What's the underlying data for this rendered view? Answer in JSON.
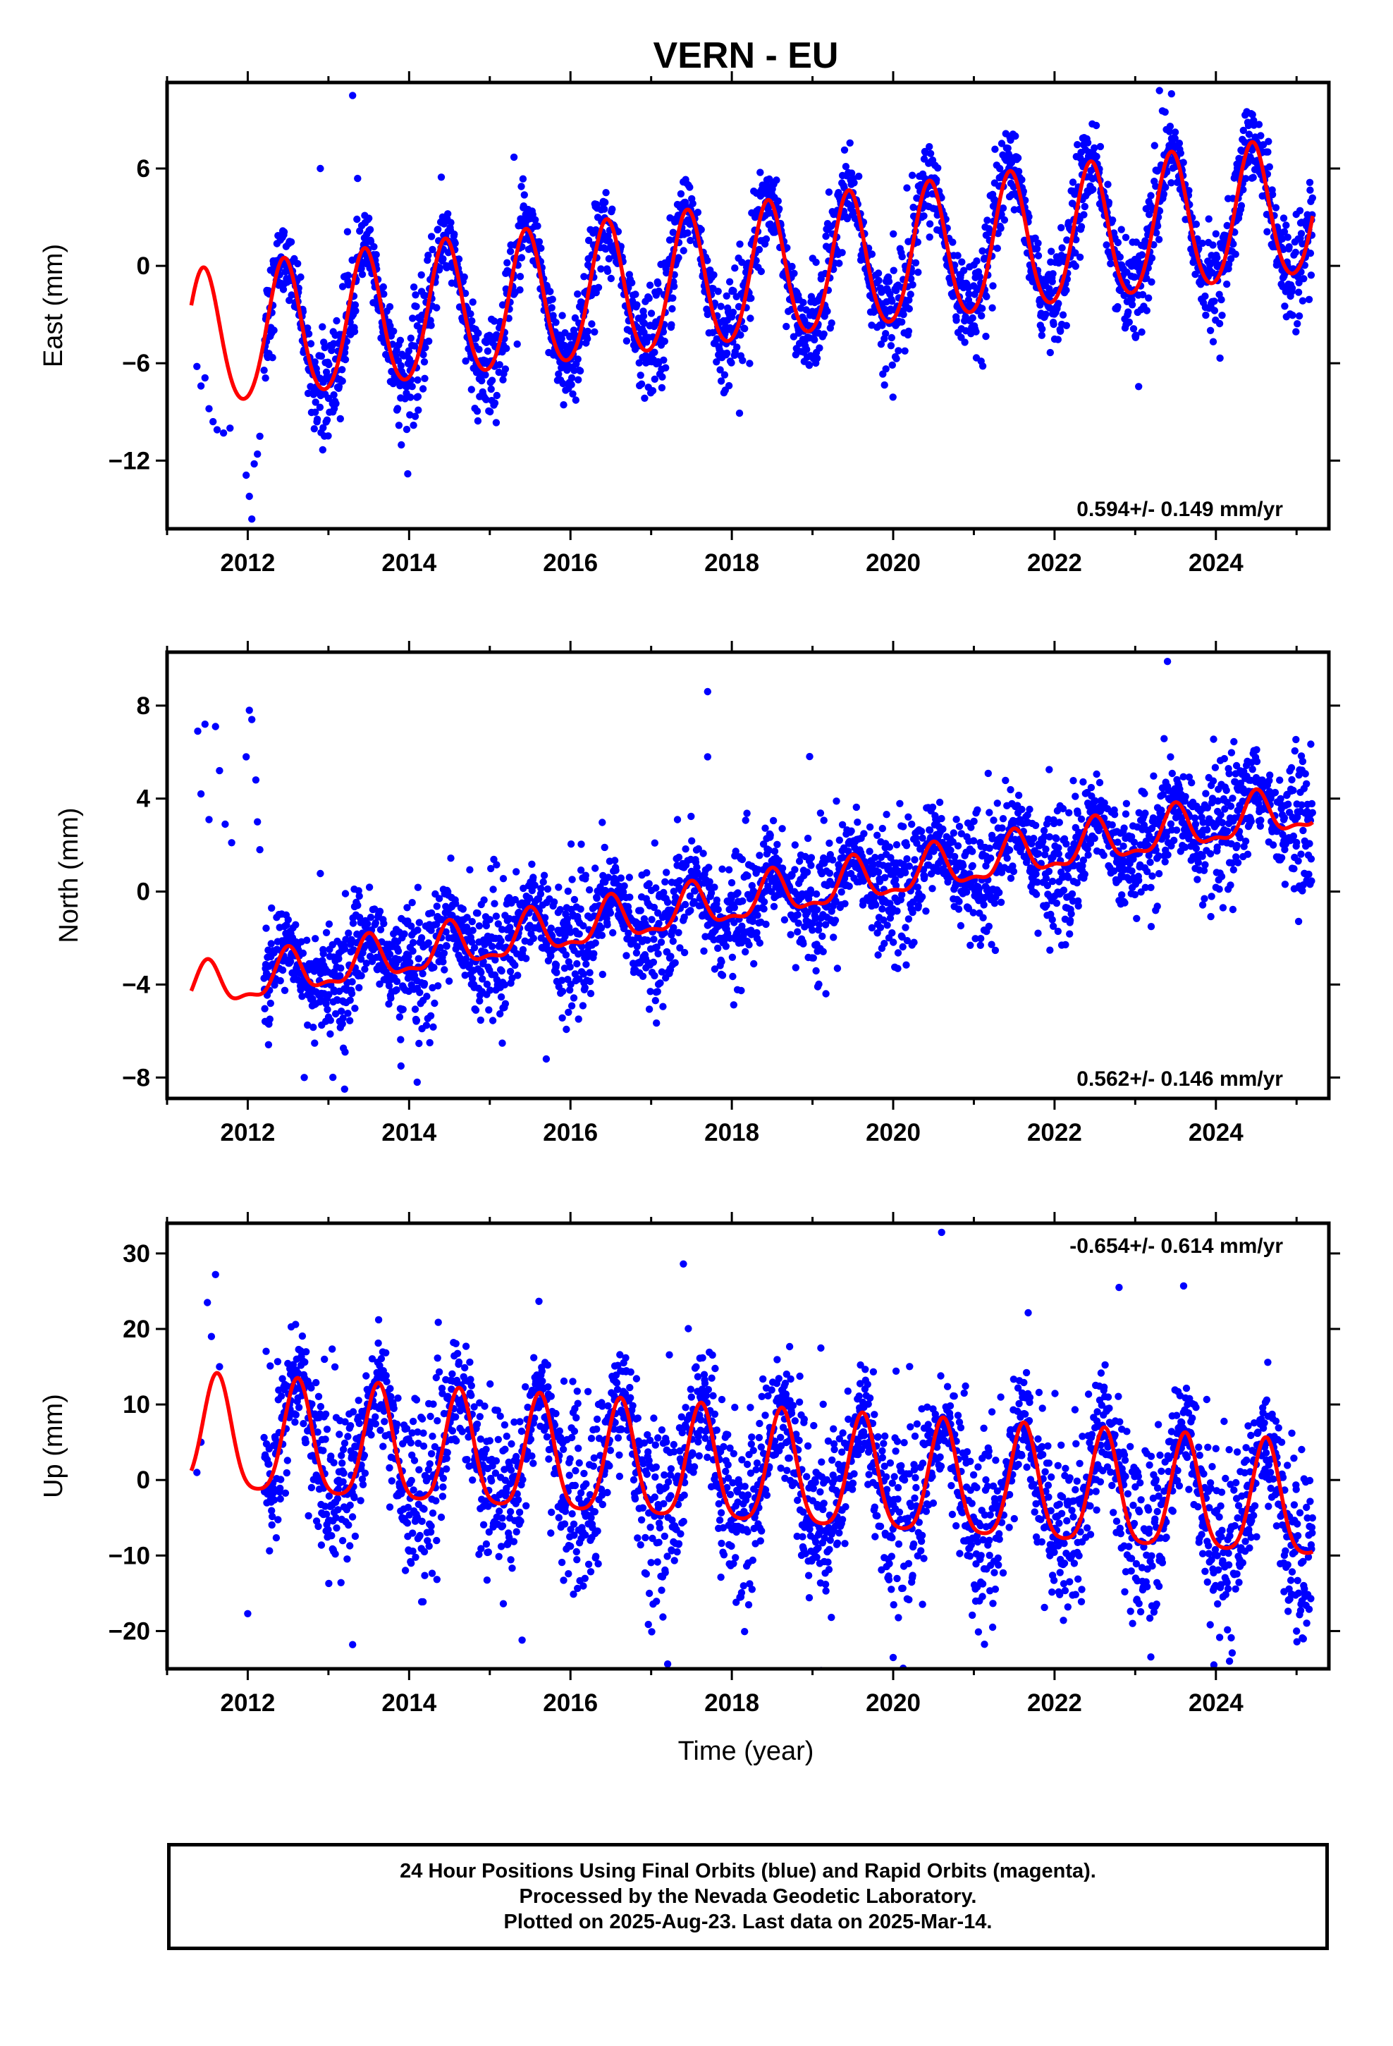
{
  "title": "VERN - EU",
  "xlabel": "Time (year)",
  "footer": {
    "line1": "24 Hour Positions Using Final Orbits (blue) and Rapid Orbits (magenta).",
    "line2": "Processed by the Nevada Geodetic Laboratory.",
    "line3": "Plotted on 2025-Aug-23. Last data on 2025-Mar-14."
  },
  "colors": {
    "points": "#0000ff",
    "fit": "#ff0000",
    "axes": "#000000"
  },
  "chart_data": [
    {
      "type": "scatter",
      "panel": "east",
      "ylabel": "East (mm)",
      "rate_text": "0.594+/- 0.149 mm/yr",
      "rate_position": "bottom-right",
      "xlim": [
        2011.0,
        2025.4
      ],
      "ylim": [
        -16.2,
        11.3
      ],
      "xticks": [
        2012,
        2014,
        2016,
        2018,
        2020,
        2022,
        2024
      ],
      "yticks": [
        -12,
        -6,
        0,
        6
      ],
      "ytick_labels": [
        "−12",
        "−6",
        "0",
        "6"
      ],
      "fit": {
        "x_start": 2011.3,
        "x_end": 2025.2,
        "intercept_at_2018": -0.8,
        "rate": 0.594,
        "annual_amplitude": 4.2,
        "annual_peak": 0.45,
        "semiannual_amplitude": 0.4
      },
      "data_start": 2011.35,
      "data_end": 2025.2,
      "scatter_sd": 1.4,
      "early_points": [
        {
          "x": 2011.37,
          "y": -6.2
        },
        {
          "x": 2011.42,
          "y": -7.4
        },
        {
          "x": 2011.47,
          "y": -6.9
        },
        {
          "x": 2011.52,
          "y": -8.8
        },
        {
          "x": 2011.57,
          "y": -9.6
        },
        {
          "x": 2011.62,
          "y": -10.1
        },
        {
          "x": 2011.7,
          "y": -10.3
        },
        {
          "x": 2011.78,
          "y": -10.0
        },
        {
          "x": 2011.98,
          "y": -12.9
        },
        {
          "x": 2012.02,
          "y": -14.2
        },
        {
          "x": 2012.05,
          "y": -15.6
        },
        {
          "x": 2012.08,
          "y": -12.2
        },
        {
          "x": 2012.12,
          "y": -11.6
        },
        {
          "x": 2012.15,
          "y": -10.5
        }
      ],
      "outliers": [
        {
          "x": 2013.3,
          "y": 10.5
        },
        {
          "x": 2012.9,
          "y": 6.0
        },
        {
          "x": 2015.3,
          "y": 6.7
        },
        {
          "x": 2023.3,
          "y": 10.8
        },
        {
          "x": 2023.45,
          "y": 10.6
        }
      ]
    },
    {
      "type": "scatter",
      "panel": "north",
      "ylabel": "North (mm)",
      "rate_text": "0.562+/- 0.146 mm/yr",
      "rate_position": "bottom-right",
      "xlim": [
        2011.0,
        2025.4
      ],
      "ylim": [
        -8.9,
        10.3
      ],
      "xticks": [
        2012,
        2014,
        2016,
        2018,
        2020,
        2022,
        2024
      ],
      "yticks": [
        -8,
        -4,
        0,
        4,
        8
      ],
      "ytick_labels": [
        "−8",
        "−4",
        "0",
        "4",
        "8"
      ],
      "fit": {
        "x_start": 2011.3,
        "x_end": 2025.2,
        "intercept_at_2018": -0.5,
        "rate": 0.562,
        "annual_amplitude": 0.9,
        "annual_peak": 0.5,
        "semiannual_amplitude": 0.35
      },
      "data_start": 2011.35,
      "data_end": 2025.2,
      "scatter_sd": 1.2,
      "early_points": [
        {
          "x": 2011.38,
          "y": 6.9
        },
        {
          "x": 2011.42,
          "y": 4.2
        },
        {
          "x": 2011.47,
          "y": 7.2
        },
        {
          "x": 2011.52,
          "y": 3.1
        },
        {
          "x": 2011.6,
          "y": 7.1
        },
        {
          "x": 2011.65,
          "y": 5.2
        },
        {
          "x": 2011.72,
          "y": 2.9
        },
        {
          "x": 2011.8,
          "y": 2.1
        },
        {
          "x": 2011.98,
          "y": 5.8
        },
        {
          "x": 2012.02,
          "y": 7.8
        },
        {
          "x": 2012.05,
          "y": 7.4
        },
        {
          "x": 2012.1,
          "y": 4.8
        },
        {
          "x": 2012.12,
          "y": 3.0
        },
        {
          "x": 2012.15,
          "y": 1.8
        }
      ],
      "outliers": [
        {
          "x": 2017.7,
          "y": 8.6
        },
        {
          "x": 2017.7,
          "y": 5.8
        },
        {
          "x": 2023.4,
          "y": 9.9
        },
        {
          "x": 2013.2,
          "y": -8.5
        },
        {
          "x": 2014.1,
          "y": -8.2
        },
        {
          "x": 2015.7,
          "y": -7.2
        },
        {
          "x": 2012.7,
          "y": -8.0
        }
      ]
    },
    {
      "type": "scatter",
      "panel": "up",
      "ylabel": "Up (mm)",
      "rate_text": "-0.654+/- 0.614 mm/yr",
      "rate_position": "top-right",
      "xlim": [
        2011.0,
        2025.4
      ],
      "ylim": [
        -25,
        34
      ],
      "xticks": [
        2012,
        2014,
        2016,
        2018,
        2020,
        2022,
        2024
      ],
      "yticks": [
        -20,
        -10,
        0,
        10,
        20,
        30
      ],
      "ytick_labels": [
        "−20",
        "−10",
        "0",
        "10",
        "20",
        "30"
      ],
      "fit": {
        "x_start": 2011.3,
        "x_end": 2025.2,
        "intercept_at_2018": 1.0,
        "rate": -0.654,
        "annual_amplitude": 7.5,
        "annual_peak": 0.62,
        "semiannual_amplitude": 1.5
      },
      "data_start": 2011.35,
      "data_end": 2025.2,
      "scatter_sd": 5.2,
      "early_points": [
        {
          "x": 2011.37,
          "y": 1.0
        },
        {
          "x": 2011.42,
          "y": 5.0
        },
        {
          "x": 2011.5,
          "y": 23.5
        },
        {
          "x": 2011.55,
          "y": 19.0
        },
        {
          "x": 2011.6,
          "y": 27.2
        },
        {
          "x": 2011.65,
          "y": 15.0
        }
      ],
      "outliers": [
        {
          "x": 2020.6,
          "y": 32.8
        },
        {
          "x": 2017.4,
          "y": 28.6
        },
        {
          "x": 2020.0,
          "y": -23.5
        },
        {
          "x": 2013.3,
          "y": -21.8
        },
        {
          "x": 2015.4,
          "y": -21.2
        },
        {
          "x": 2022.8,
          "y": 25.5
        },
        {
          "x": 2023.6,
          "y": 25.7
        },
        {
          "x": 2012.0,
          "y": -17.7
        }
      ]
    }
  ]
}
